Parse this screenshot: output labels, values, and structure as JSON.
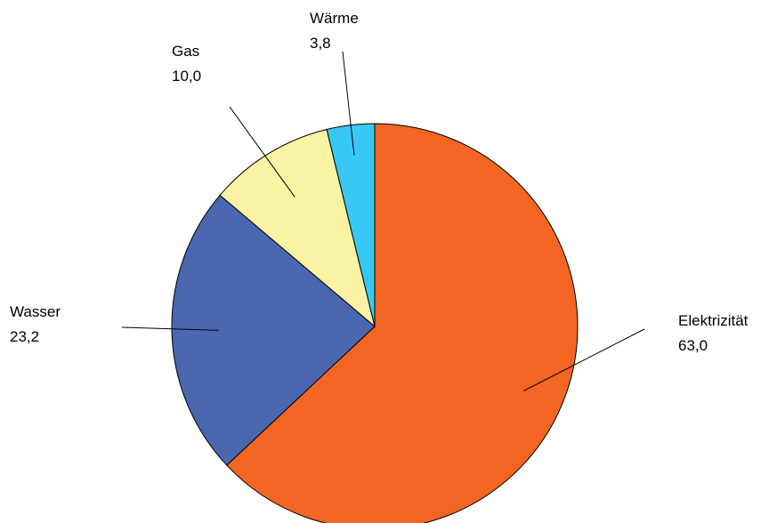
{
  "chart_data": {
    "type": "pie",
    "title": "",
    "categories": [
      "Elektrizität",
      "Wasser",
      "Gas",
      "Wärme"
    ],
    "values": [
      63.0,
      23.2,
      10.0,
      3.8
    ],
    "value_labels": [
      "63,0",
      "23,2",
      "10,0",
      "3,8"
    ],
    "colors": [
      "#F26522",
      "#4A67B0",
      "#FAF3A3",
      "#38C8F5"
    ],
    "start_angle": "12 o'clock",
    "direction": "clockwise",
    "legend": "none (slice labels with leader lines)"
  }
}
